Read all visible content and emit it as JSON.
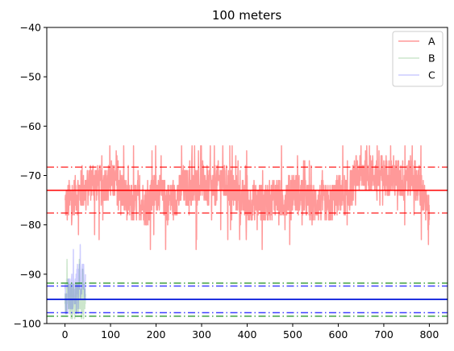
{
  "chart_data": {
    "type": "line",
    "title": "100 meters",
    "xlabel": "",
    "ylabel": "",
    "xlim": [
      -40,
      840
    ],
    "ylim": [
      -100,
      -40
    ],
    "xticks": [
      0,
      100,
      200,
      300,
      400,
      500,
      600,
      700,
      800
    ],
    "yticks": [
      -100,
      -90,
      -80,
      -70,
      -60,
      -50,
      -40
    ],
    "xtick_labels": [
      "0",
      "100",
      "200",
      "300",
      "400",
      "500",
      "600",
      "700",
      "800"
    ],
    "ytick_labels": [
      "−100",
      "−90",
      "−80",
      "−70",
      "−60",
      "−50",
      "−40"
    ],
    "grid": false,
    "legend_position": "top-right",
    "series": [
      {
        "name": "A",
        "color": "#ff0000",
        "opacity": 0.4,
        "x_range": [
          0,
          800
        ],
        "y_range": [
          -85,
          -64
        ],
        "profile": [
          [
            0,
            -76
          ],
          [
            20,
            -74
          ],
          [
            40,
            -73
          ],
          [
            60,
            -71
          ],
          [
            80,
            -72
          ],
          [
            100,
            -71
          ],
          [
            120,
            -72
          ],
          [
            140,
            -76
          ],
          [
            160,
            -75
          ],
          [
            180,
            -76
          ],
          [
            200,
            -73
          ],
          [
            220,
            -75
          ],
          [
            240,
            -75
          ],
          [
            260,
            -72
          ],
          [
            280,
            -73
          ],
          [
            300,
            -71
          ],
          [
            320,
            -73
          ],
          [
            340,
            -71
          ],
          [
            360,
            -72
          ],
          [
            380,
            -74
          ],
          [
            400,
            -76
          ],
          [
            420,
            -75
          ],
          [
            440,
            -76
          ],
          [
            460,
            -74
          ],
          [
            480,
            -75
          ],
          [
            500,
            -73
          ],
          [
            520,
            -74
          ],
          [
            540,
            -76
          ],
          [
            560,
            -75
          ],
          [
            580,
            -76
          ],
          [
            600,
            -74
          ],
          [
            620,
            -74
          ],
          [
            640,
            -70
          ],
          [
            660,
            -69
          ],
          [
            680,
            -70
          ],
          [
            700,
            -70
          ],
          [
            720,
            -70
          ],
          [
            740,
            -71
          ],
          [
            760,
            -70
          ],
          [
            780,
            -72
          ],
          [
            800,
            -79
          ]
        ]
      },
      {
        "name": "B",
        "color": "#008000",
        "opacity": 0.2,
        "x_range": [
          0,
          45
        ],
        "y_range": [
          -99,
          -87
        ],
        "profile": [
          [
            0,
            -94
          ],
          [
            10,
            -95
          ],
          [
            20,
            -96
          ],
          [
            30,
            -95
          ],
          [
            40,
            -96
          ],
          [
            45,
            -96
          ]
        ]
      },
      {
        "name": "C",
        "color": "#0000ff",
        "opacity": 0.2,
        "x_range": [
          0,
          45
        ],
        "y_range": [
          -98,
          -83
        ],
        "profile": [
          [
            0,
            -95
          ],
          [
            10,
            -94
          ],
          [
            20,
            -93
          ],
          [
            30,
            -92
          ],
          [
            40,
            -90
          ],
          [
            45,
            -92
          ]
        ]
      }
    ],
    "reference_lines": [
      {
        "series": "A",
        "kind": "mean",
        "y": -73.0,
        "color": "#ff0000",
        "style": "solid"
      },
      {
        "series": "A",
        "kind": "upper",
        "y": -68.3,
        "color": "#ff0000",
        "style": "dashdot"
      },
      {
        "series": "A",
        "kind": "lower",
        "y": -77.6,
        "color": "#ff0000",
        "style": "dashdot"
      },
      {
        "series": "B",
        "kind": "mean",
        "y": -95.1,
        "color": "#008000",
        "style": "solid"
      },
      {
        "series": "B",
        "kind": "upper",
        "y": -91.8,
        "color": "#008000",
        "style": "dashdot"
      },
      {
        "series": "B",
        "kind": "lower",
        "y": -98.5,
        "color": "#008000",
        "style": "dashdot"
      },
      {
        "series": "C",
        "kind": "mean",
        "y": -95.1,
        "color": "#0000ff",
        "style": "solid"
      },
      {
        "series": "C",
        "kind": "upper",
        "y": -92.4,
        "color": "#0000ff",
        "style": "dashdot"
      },
      {
        "series": "C",
        "kind": "lower",
        "y": -97.8,
        "color": "#0000ff",
        "style": "dashdot"
      }
    ]
  }
}
